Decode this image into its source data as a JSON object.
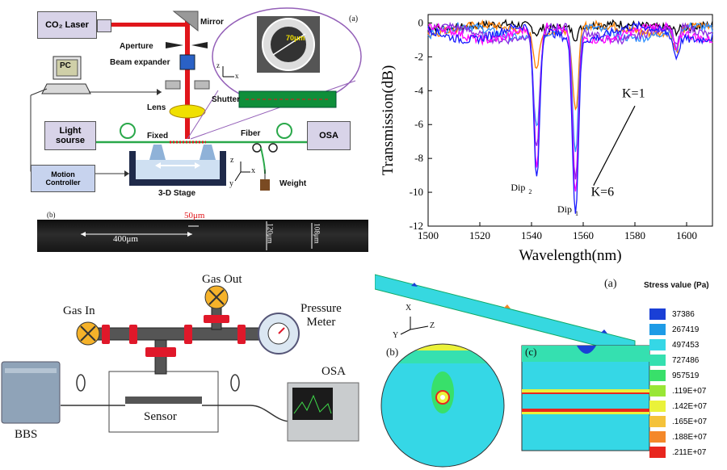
{
  "setup": {
    "panel_tag": "(a)",
    "laser": "CO₂ Laser",
    "mirror": "Mirror",
    "aperture": "Aperture",
    "beam_expander": "Beam expander",
    "shutter": "Shutter",
    "lens": "Lens",
    "pc": "PC",
    "light_source": "Light sourse",
    "fixed": "Fixed",
    "fiber": "Fiber",
    "osa": "OSA",
    "weight": "Weight",
    "stage": "3-D Stage",
    "motion": "Motion",
    "controller": "Controller",
    "inset_dim": "70μm",
    "axis_z": "z",
    "axis_x": "x",
    "axis_y": "y",
    "colors": {
      "laser_box": "#d8d3e8",
      "beam": "#e0161b",
      "lens": "#f0e000",
      "fiber": "#2aa84a",
      "stage": "#2c3e66",
      "grating": "#0f8f3a"
    }
  },
  "micrograph": {
    "panel_tag": "(b)",
    "length_label": "400μm",
    "gap_label": "50μm",
    "diam1": "120μm",
    "diam2": "108μm"
  },
  "chart_data": {
    "type": "line",
    "xlabel": "Wavelength(nm)",
    "ylabel": "Transmission(dB)",
    "xlim": [
      1500,
      1610
    ],
    "ylim": [
      -12,
      0.5
    ],
    "xticks": [
      1500,
      1520,
      1540,
      1560,
      1580,
      1600
    ],
    "yticks": [
      0,
      -2,
      -4,
      -6,
      -8,
      -10,
      -12
    ],
    "grid": false,
    "annotations": {
      "k1": "K=1",
      "k6": "K=6",
      "dip2": "Dip",
      "dip2_sub": "2",
      "dip1": "Dip",
      "dip1_sub": "1"
    },
    "series": [
      {
        "color": "#000000",
        "dips": [
          [
            1542,
            0.4
          ],
          [
            1557,
            0.6
          ]
        ],
        "base": -0.3
      },
      {
        "color": "#ff7f00",
        "dips": [
          [
            1542,
            2.0
          ],
          [
            1557,
            5.0
          ]
        ],
        "base": -0.6
      },
      {
        "color": "#2f8fff",
        "dips": [
          [
            1542,
            5.5
          ],
          [
            1557,
            7.5
          ]
        ],
        "base": -0.9
      },
      {
        "color": "#8a2be2",
        "dips": [
          [
            1542,
            7.0
          ],
          [
            1557,
            9.0
          ]
        ],
        "base": -1.0
      },
      {
        "color": "#ff00ff",
        "dips": [
          [
            1542,
            8.2
          ],
          [
            1557,
            9.5
          ]
        ],
        "base": -1.0
      },
      {
        "color": "#1a1aff",
        "dips": [
          [
            1542,
            9.0
          ],
          [
            1557,
            10.3
          ]
        ],
        "base": -1.0
      }
    ]
  },
  "bbs_setup": {
    "gas_in": "Gas In",
    "gas_out": "Gas Out",
    "pressure_meter_1": "Pressure",
    "pressure_meter_2": "Meter",
    "osa": "OSA",
    "bbs": "BBS",
    "sensor": "Sensor"
  },
  "stress": {
    "panel_a": "(a)",
    "panel_b": "(b)",
    "panel_c": "(c)",
    "legend_title": "Stress value (Pa)",
    "axes": {
      "x": "X",
      "y": "Y",
      "z": "Z"
    },
    "legend": [
      {
        "value": "37386",
        "color": "#1a3fd6"
      },
      {
        "value": "267419",
        "color": "#1e9be6"
      },
      {
        "value": "497453",
        "color": "#35d7e6"
      },
      {
        "value": "727486",
        "color": "#35e0b0"
      },
      {
        "value": "957519",
        "color": "#38e06a"
      },
      {
        "value": ".119E+07",
        "color": "#99e636"
      },
      {
        "value": ".142E+07",
        "color": "#eaf23a"
      },
      {
        "value": ".165E+07",
        "color": "#f4c23a"
      },
      {
        "value": ".188E+07",
        "color": "#f4882a"
      },
      {
        "value": ".211E+07",
        "color": "#e8261e"
      }
    ]
  }
}
